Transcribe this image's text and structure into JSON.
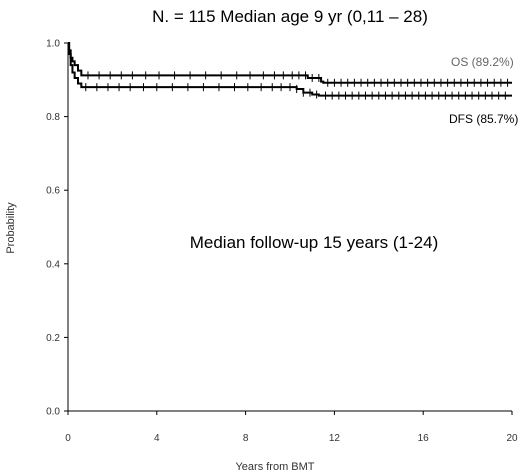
{
  "chart_data": {
    "type": "line",
    "title": "N. = 115   Median age 9 yr (0,11 – 28)",
    "xlabel": "Years from BMT",
    "ylabel": "Probability",
    "xlim": [
      0,
      20
    ],
    "ylim": [
      0,
      1
    ],
    "x_ticks": [
      "0",
      "4",
      "8",
      "12",
      "16",
      "20"
    ],
    "y_ticks": [
      "0.0",
      "0.2",
      "0.4",
      "0.6",
      "0.8",
      "1.0"
    ],
    "grid": false,
    "annotation": "Median follow-up 15 years (1-24)",
    "series": [
      {
        "name": "OS (89.2%)",
        "color": "#000000",
        "steps": [
          [
            0,
            1.0
          ],
          [
            0.05,
            0.98
          ],
          [
            0.12,
            0.96
          ],
          [
            0.2,
            0.95
          ],
          [
            0.3,
            0.94
          ],
          [
            0.45,
            0.925
          ],
          [
            0.6,
            0.912
          ],
          [
            10.6,
            0.912
          ],
          [
            10.8,
            0.905
          ],
          [
            11.4,
            0.895
          ],
          [
            11.5,
            0.892
          ],
          [
            20,
            0.892
          ]
        ],
        "censor_x": [
          0.9,
          1.4,
          1.9,
          2.4,
          2.9,
          3.5,
          4.1,
          4.8,
          5.5,
          6.2,
          6.9,
          7.6,
          8.2,
          8.8,
          9.3,
          9.7,
          10.1,
          10.4,
          10.7,
          11.0,
          11.3,
          11.7,
          12.0,
          12.3,
          12.6,
          12.9,
          13.2,
          13.5,
          13.8,
          14.1,
          14.4,
          14.7,
          15.0,
          15.3,
          15.6,
          15.9,
          16.2,
          16.5,
          16.8,
          17.1,
          17.4,
          17.7,
          18.0,
          18.3,
          18.6,
          18.9,
          19.2,
          19.5,
          19.8
        ]
      },
      {
        "name": "DFS (85.7%)",
        "color": "#000000",
        "steps": [
          [
            0,
            1.0
          ],
          [
            0.05,
            0.97
          ],
          [
            0.12,
            0.94
          ],
          [
            0.2,
            0.92
          ],
          [
            0.3,
            0.905
          ],
          [
            0.45,
            0.89
          ],
          [
            0.6,
            0.88
          ],
          [
            10.0,
            0.88
          ],
          [
            10.3,
            0.875
          ],
          [
            10.6,
            0.865
          ],
          [
            11.0,
            0.86
          ],
          [
            11.3,
            0.857
          ],
          [
            20,
            0.857
          ]
        ],
        "censor_x": [
          0.8,
          1.3,
          1.8,
          2.3,
          2.8,
          3.4,
          4.0,
          4.7,
          5.4,
          6.1,
          6.8,
          7.5,
          8.1,
          8.7,
          9.2,
          9.6,
          10.0,
          10.3,
          10.6,
          10.9,
          11.2,
          11.6,
          11.9,
          12.2,
          12.5,
          12.8,
          13.1,
          13.4,
          13.7,
          14.0,
          14.3,
          14.6,
          14.9,
          15.2,
          15.5,
          15.8,
          16.1,
          16.4,
          16.7,
          17.0,
          17.3,
          17.6,
          17.9,
          18.2,
          18.5,
          18.8,
          19.1,
          19.4,
          19.7
        ]
      }
    ]
  }
}
